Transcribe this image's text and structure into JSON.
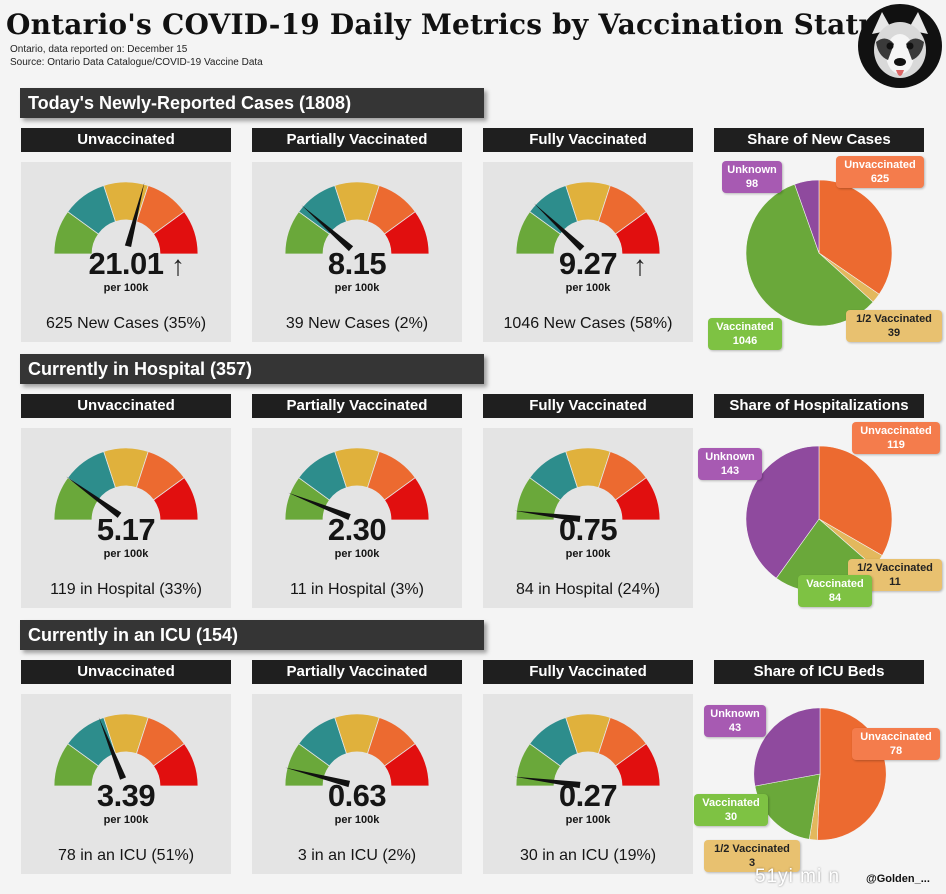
{
  "title": "Ontario's COVID-19 Daily Metrics by Vaccination Status",
  "subtitle_date": "Ontario, data reported on: December 15",
  "subtitle_source": "Source: Ontario Data Catalogue/COVID-19 Vaccine Data",
  "logo_icon": "dog-face-icon",
  "colors": {
    "green": "#6aa83a",
    "teal": "#2d8d8c",
    "yellow": "#e0b13c",
    "orange": "#ec6a30",
    "red": "#e10f0f",
    "pie_unvaccinated": "#ec6a30",
    "pie_half": "#e3b85d",
    "pie_vaccinated": "#6aa83a",
    "pie_unknown": "#8f4a9e"
  },
  "per_label": "per 100k",
  "arrow_glyph": "↑",
  "chart_data": [
    {
      "type": "gauge",
      "section": "Today's Newly-Reported  Cases (1808)",
      "gauges": [
        {
          "label": "Unvaccinated",
          "value": "21.01",
          "needle_fraction": 0.58,
          "count_text": "625 New Cases (35%)",
          "arrow": true
        },
        {
          "label": "Partially Vaccinated",
          "value": "8.15",
          "needle_fraction": 0.23,
          "count_text": "39 New Cases (2%)",
          "arrow": false
        },
        {
          "label": "Fully Vaccinated",
          "value": "9.27",
          "needle_fraction": 0.24,
          "count_text": "1046 New Cases (58%)",
          "arrow": true
        }
      ],
      "pie": {
        "title": "Share of New Cases",
        "slices": [
          {
            "label": "Unvaccinated",
            "value": 625
          },
          {
            "label": "1/2 Vaccinated",
            "value": 39
          },
          {
            "label": "Vaccinated",
            "value": 1046
          },
          {
            "label": "Unknown",
            "value": 98
          }
        ]
      }
    },
    {
      "type": "gauge",
      "section": "Currently  in Hospital (357)",
      "gauges": [
        {
          "label": "Unvaccinated",
          "value": "5.17",
          "needle_fraction": 0.2,
          "count_text": "119 in Hospital (33%)",
          "arrow": false
        },
        {
          "label": "Partially Vaccinated",
          "value": "2.30",
          "needle_fraction": 0.12,
          "count_text": "11 in Hospital (3%)",
          "arrow": false
        },
        {
          "label": "Fully Vaccinated",
          "value": "0.75",
          "needle_fraction": 0.04,
          "count_text": "84 in Hospital (24%)",
          "arrow": false
        }
      ],
      "pie": {
        "title": "Share of Hospitalizations",
        "slices": [
          {
            "label": "Unvaccinated",
            "value": 119
          },
          {
            "label": "1/2 Vaccinated",
            "value": 11
          },
          {
            "label": "Vaccinated",
            "value": 84
          },
          {
            "label": "Unknown",
            "value": 143
          }
        ]
      }
    },
    {
      "type": "gauge",
      "section": "Currently  in an ICU (154)",
      "gauges": [
        {
          "label": "Unvaccinated",
          "value": "3.39",
          "needle_fraction": 0.38,
          "count_text": "78 in an ICU (51%)",
          "arrow": false
        },
        {
          "label": "Partially Vaccinated",
          "value": "0.63",
          "needle_fraction": 0.08,
          "count_text": "3 in an ICU (2%)",
          "arrow": false
        },
        {
          "label": "Fully Vaccinated",
          "value": "0.27",
          "needle_fraction": 0.04,
          "count_text": "30 in an ICU (19%)",
          "arrow": false
        }
      ],
      "pie": {
        "title": "Share of ICU Beds",
        "slices": [
          {
            "label": "Unvaccinated",
            "value": 78
          },
          {
            "label": "1/2 Vaccinated",
            "value": 3
          },
          {
            "label": "Vaccinated",
            "value": 30
          },
          {
            "label": "Unknown",
            "value": 43
          }
        ]
      }
    }
  ],
  "watermark": "51yi mi n",
  "credit": "@Golden_..."
}
